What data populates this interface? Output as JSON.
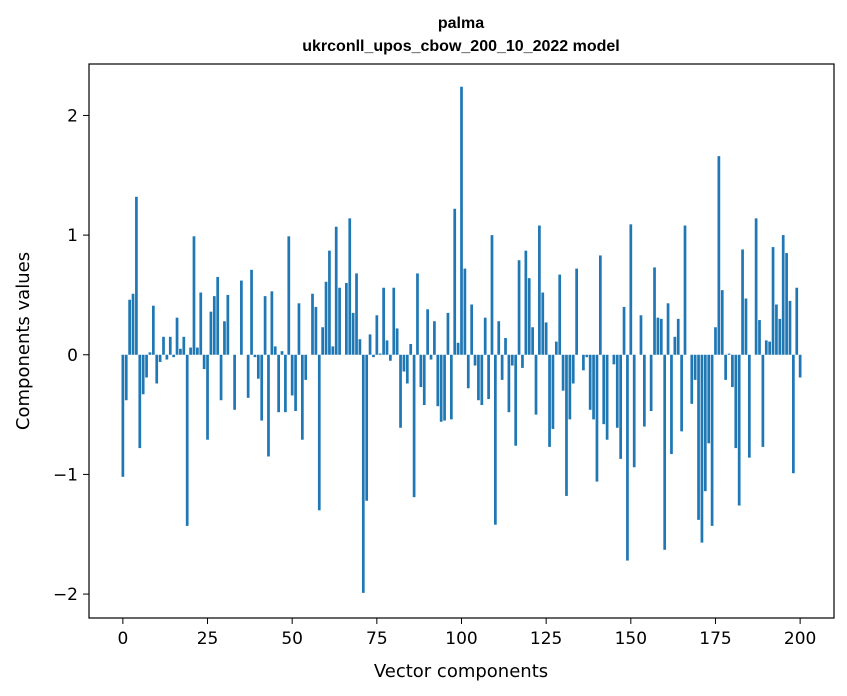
{
  "chart_data": {
    "type": "bar",
    "title_line1": "palma",
    "title_line2": "ukrconll_upos_cbow_200_10_2022 model",
    "xlabel": "Vector components",
    "ylabel": "Components values",
    "xlim": [
      -10,
      210
    ],
    "ylim": [
      -2.2,
      2.43
    ],
    "xticks": [
      0,
      25,
      50,
      75,
      100,
      125,
      150,
      175,
      200
    ],
    "yticks": [
      -2,
      -1,
      0,
      1,
      2
    ],
    "ytick_labels": [
      "−2",
      "−1",
      "0",
      "1",
      "2"
    ],
    "bar_color": "#1f77b4",
    "grid": false,
    "legend": "none",
    "values": [
      -1.02,
      -0.38,
      0.46,
      0.51,
      1.32,
      -0.78,
      -0.33,
      -0.19,
      0.02,
      0.41,
      -0.24,
      -0.06,
      0.15,
      -0.04,
      0.15,
      -0.02,
      0.31,
      0.05,
      0.15,
      -1.43,
      0.06,
      0.99,
      0.06,
      0.52,
      -0.12,
      -0.71,
      0.36,
      0.49,
      0.65,
      -0.38,
      0.28,
      0.5,
      0.0,
      -0.46,
      0.0,
      0.62,
      0.0,
      -0.36,
      0.71,
      -0.02,
      -0.2,
      -0.55,
      0.49,
      -0.85,
      0.53,
      0.07,
      -0.48,
      0.03,
      -0.48,
      0.99,
      -0.34,
      -0.47,
      0.43,
      -0.71,
      -0.21,
      0.0,
      0.51,
      0.4,
      -1.3,
      0.23,
      0.61,
      0.87,
      0.07,
      1.07,
      0.56,
      0.0,
      0.6,
      1.14,
      0.35,
      0.68,
      0.13,
      -1.99,
      -1.22,
      0.17,
      -0.02,
      0.33,
      0.01,
      0.56,
      0.12,
      -0.05,
      0.56,
      0.22,
      -0.61,
      -0.14,
      -0.24,
      0.09,
      -1.19,
      0.68,
      -0.27,
      -0.42,
      0.38,
      -0.04,
      0.28,
      -0.43,
      -0.56,
      -0.55,
      0.35,
      -0.54,
      1.22,
      0.1,
      2.24,
      0.72,
      -0.28,
      0.42,
      -0.09,
      -0.38,
      -0.42,
      0.31,
      -0.37,
      1.0,
      -1.42,
      0.28,
      -0.21,
      0.14,
      -0.48,
      -0.09,
      -0.76,
      0.79,
      -0.11,
      0.87,
      0.64,
      0.23,
      -0.5,
      1.08,
      0.52,
      0.27,
      -0.77,
      -0.62,
      0.11,
      0.67,
      -0.3,
      -1.18,
      -0.54,
      -0.24,
      0.72,
      0.0,
      -0.13,
      -0.02,
      -0.46,
      -0.54,
      -1.06,
      0.83,
      -0.58,
      -0.71,
      0.0,
      -0.08,
      -0.61,
      -0.87,
      0.4,
      -1.72,
      1.09,
      -0.94,
      0.0,
      0.33,
      -0.6,
      0.0,
      -0.47,
      0.73,
      0.31,
      0.3,
      -1.63,
      0.43,
      -0.83,
      0.15,
      0.3,
      -0.64,
      1.08,
      0.0,
      -0.41,
      -0.21,
      -1.38,
      -1.57,
      -1.14,
      -0.74,
      -1.43,
      0.23,
      1.66,
      0.54,
      -0.21,
      0.01,
      -0.27,
      -0.78,
      -1.26,
      0.88,
      0.47,
      -0.86,
      0.0,
      1.14,
      0.29,
      -0.77,
      0.12,
      0.11,
      0.9,
      0.42,
      0.3,
      1.0,
      0.85,
      0.45,
      -0.99,
      0.56,
      -0.19
    ]
  }
}
